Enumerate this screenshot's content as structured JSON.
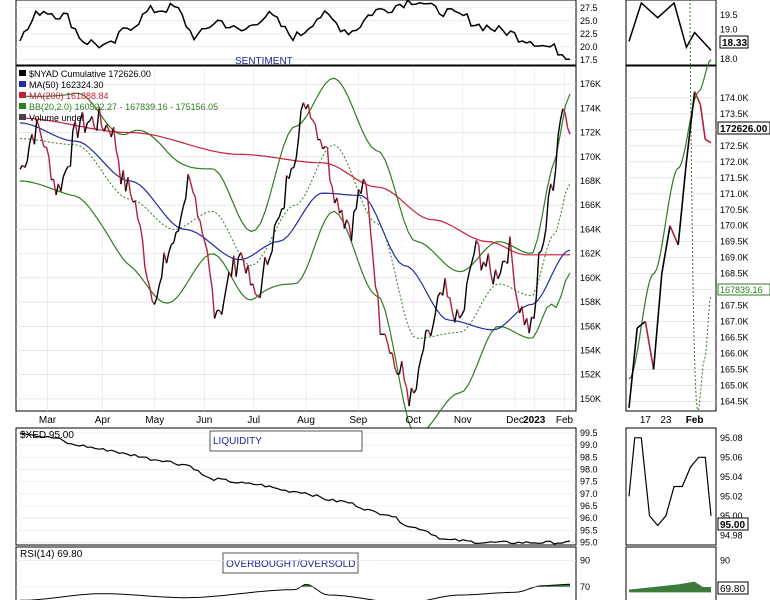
{
  "panels": {
    "sentiment": {
      "label": "SENTIMENT",
      "ticks": [
        "27.5",
        "25.0",
        "22.5",
        "20.0",
        "17.5"
      ],
      "right_ticks": [
        "19.5",
        "19.0",
        "18.5",
        "18.0"
      ],
      "last_value": "18.33"
    },
    "main": {
      "legend": [
        {
          "text": "$NYAD Cumulative 172626.00",
          "color": "#000000"
        },
        {
          "text": "MA(50) 162324.30",
          "color": "#1f2f9f"
        },
        {
          "text": "MA(200) 161888.84",
          "color": "#c8203a"
        },
        {
          "text": "BB(20,2.0) 160522.27 - 167839.16 - 175156.05",
          "color": "#2e7d20"
        },
        {
          "text": "Volume undef",
          "color": "#444444"
        }
      ],
      "x_labels": [
        "Mar",
        "Apr",
        "May",
        "Jun",
        "Jul",
        "Aug",
        "Sep",
        "Oct",
        "Nov",
        "Dec",
        "2023",
        "Feb"
      ],
      "y_ticks": [
        "176K",
        "174K",
        "172K",
        "170K",
        "168K",
        "166K",
        "164K",
        "162K",
        "160K",
        "158K",
        "156K",
        "154K",
        "152K",
        "150K"
      ],
      "right_ticks": [
        "174.0K",
        "173.5K",
        "173.0K",
        "172.5K",
        "172.0K",
        "171.5K",
        "171.0K",
        "170.5K",
        "170.0K",
        "169.5K",
        "169.0K",
        "168.5K",
        "168.0K",
        "167.5K",
        "167.0K",
        "166.5K",
        "166.0K",
        "165.5K",
        "165.0K",
        "164.5K"
      ],
      "right_x_labels": [
        "17",
        "23",
        "Feb"
      ],
      "last_value": "172626.00",
      "bb_mid_value": "167839.16"
    },
    "liquidity": {
      "legend": "$XED 95.00",
      "label": "LIQUIDITY",
      "ticks": [
        "99.5",
        "99.0",
        "98.5",
        "98.0",
        "97.5",
        "97.0",
        "96.5",
        "96.0",
        "95.5",
        "95.0"
      ],
      "right_ticks": [
        "95.08",
        "95.06",
        "95.04",
        "95.02",
        "95.00",
        "94.98"
      ],
      "last_value": "95.00"
    },
    "rsi": {
      "legend": "RSI(14) 69.80",
      "label": "OVERBOUGHT/OVERSOLD",
      "ticks": [
        "90",
        "70"
      ],
      "right_ticks": [
        "90"
      ],
      "last_value": "69.80"
    }
  },
  "chart_data": [
    {
      "type": "line",
      "title": "$NYAD Cumulative 172626.00",
      "x": [
        "Mar",
        "Apr",
        "May",
        "Jun",
        "Jul",
        "Aug",
        "Sep",
        "Oct",
        "Nov",
        "Dec",
        "2023",
        "Feb"
      ],
      "series": [
        {
          "name": "$NYAD Cumulative",
          "values": [
            171000,
            171500,
            165000,
            162500,
            159500,
            173500,
            161000,
            150500,
            157500,
            158500,
            161500,
            172600
          ]
        },
        {
          "name": "MA(50)",
          "values": [
            172800,
            171500,
            168500,
            165000,
            162000,
            163500,
            166000,
            163000,
            156500,
            155500,
            158500,
            162300
          ]
        },
        {
          "name": "MA(200)",
          "values": [
            173000,
            172600,
            172000,
            171300,
            170500,
            169800,
            168500,
            166200,
            163800,
            162500,
            161800,
            161900
          ]
        }
      ],
      "ylim": [
        149000,
        177500
      ]
    },
    {
      "type": "line",
      "title": "$XED 95.00",
      "x": [
        "Mar",
        "Apr",
        "May",
        "Jun",
        "Jul",
        "Aug",
        "Sep",
        "Oct",
        "Nov",
        "Dec",
        "2023",
        "Feb"
      ],
      "series": [
        {
          "name": "$XED",
          "values": [
            99.5,
            99.1,
            98.5,
            97.9,
            97.6,
            97.2,
            96.6,
            96.0,
            95.1,
            95.0,
            95.0,
            95.0
          ]
        }
      ],
      "ylim": [
        94.9,
        99.7
      ]
    }
  ]
}
